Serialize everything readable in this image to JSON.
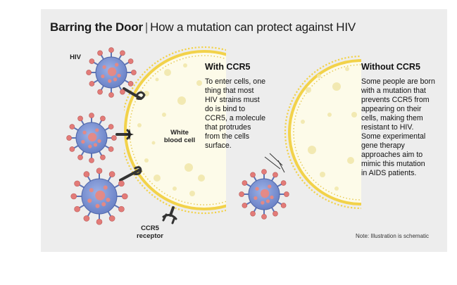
{
  "title": {
    "bold": "Barring the Door",
    "separator": "|",
    "rest": "How a mutation can protect against HIV"
  },
  "labels": {
    "hiv": "HIV",
    "white_blood_cell_line1": "White",
    "white_blood_cell_line2": "blood cell",
    "ccr5_line1": "CCR5",
    "ccr5_line2": "receptor"
  },
  "with_ccr5": {
    "heading": "With CCR5",
    "lines": [
      "To enter cells, one",
      "thing that most",
      "HIV strains must",
      "do is bind to",
      "CCR5, a molecule",
      "that protrudes",
      "from the cells",
      "surface."
    ]
  },
  "without_ccr5": {
    "heading": "Without CCR5",
    "lines": [
      "Some people are born",
      "with a mutation that",
      "prevents CCR5 from",
      "appearing on their",
      "cells, making them",
      "resistant to HIV.",
      "Some experimental",
      "gene therapy",
      "approaches aim to",
      "mimic this mutation",
      "in AIDS patients."
    ]
  },
  "note": "Note: Illustration is schematic",
  "colors": {
    "panel_bg": "#ededed",
    "cell_fill": "#fdfbe9",
    "membrane": "#f2d24a",
    "virus_body": "#7d95d4",
    "virus_core": "#e88882",
    "spike_head": "#e37b78",
    "receptor": "#333333"
  }
}
